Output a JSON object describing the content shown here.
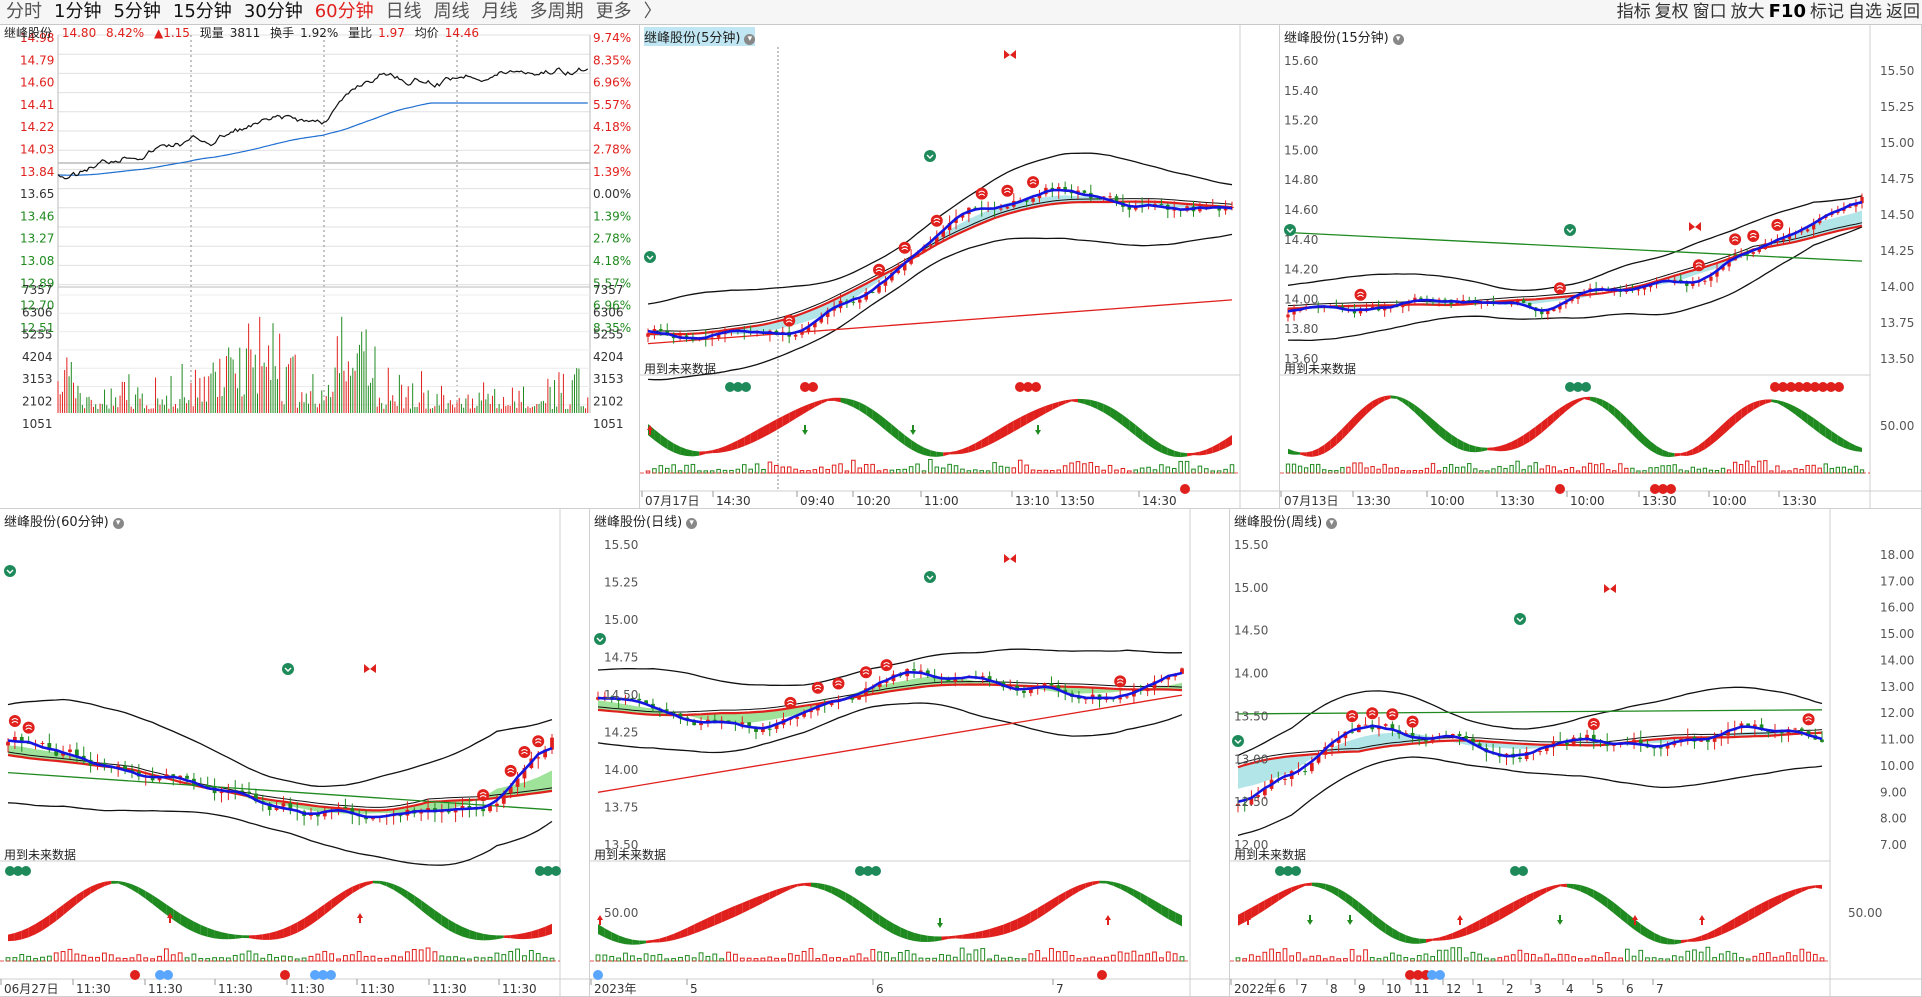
{
  "toolbar": {
    "periods": [
      "分时",
      "1分钟",
      "5分钟",
      "15分钟",
      "30分钟",
      "60分钟",
      "日线",
      "周线",
      "月线",
      "多周期",
      "更多"
    ],
    "more_chevron": "〉",
    "tools": [
      "指标",
      "复权",
      "窗口",
      "放大",
      "F10",
      "标记",
      "自选",
      "返回"
    ]
  },
  "intraday": {
    "name": "继峰股份",
    "price": "14.80",
    "pct": "8.42%",
    "change": "▲1.15",
    "volume_label": "现量",
    "volume": "3811",
    "turnover_label": "换手",
    "turnover": "1.92%",
    "ratio_label": "量比",
    "ratio": "1.97",
    "avg_label": "均价",
    "avg": "14.46",
    "price_ticks_left": [
      "14.98",
      "14.79",
      "14.60",
      "14.41",
      "14.22",
      "14.03",
      "13.84",
      "13.65",
      "13.46",
      "13.27",
      "13.08",
      "12.89",
      "12.70",
      "12.51"
    ],
    "pct_ticks_right": [
      "9.74%",
      "8.35%",
      "6.96%",
      "5.57%",
      "4.18%",
      "2.78%",
      "1.39%",
      "0.00%",
      "1.39%",
      "2.78%",
      "4.18%",
      "5.57%",
      "6.96%",
      "8.35%"
    ],
    "vol_ticks": [
      "7357",
      "6306",
      "5255",
      "4204",
      "3153",
      "2102",
      "1051"
    ]
  },
  "panels": [
    {
      "title": "继峰股份(5分钟)",
      "future": "用到未来数据",
      "price_ticks": [],
      "osc_tick": "",
      "time_ticks": [
        "07月17日",
        "14:30",
        "09:40",
        "10:20",
        "11:00",
        "13:10",
        "13:50",
        "14:30"
      ]
    },
    {
      "title": "继峰股份(15分钟)",
      "future": "用到未来数据",
      "price_ticks": [
        "15.60",
        "15.40",
        "15.20",
        "15.00",
        "14.80",
        "14.60",
        "14.40",
        "14.20",
        "14.00",
        "13.80",
        "13.60"
      ],
      "right_ticks": [
        "15.50",
        "15.25",
        "15.00",
        "14.75",
        "14.50",
        "14.25",
        "14.00",
        "13.75",
        "13.50"
      ],
      "osc_tick": "50.00",
      "time_ticks": [
        "07月13日",
        "13:30",
        "10:00",
        "13:30",
        "10:00",
        "13:30",
        "10:00",
        "13:30"
      ]
    },
    {
      "title": "继峰股份(60分钟)",
      "future": "用到未来数据",
      "time_ticks": [
        "06月27日",
        "11:30",
        "11:30",
        "11:30",
        "11:30",
        "11:30",
        "11:30",
        "11:30"
      ]
    },
    {
      "title": "继峰股份(日线)",
      "future": "用到未来数据",
      "price_ticks": [
        "15.50",
        "15.25",
        "15.00",
        "14.75",
        "14.50",
        "14.25",
        "14.00",
        "13.75",
        "13.50"
      ],
      "osc_tick": "50.00",
      "time_ticks": [
        "2023年",
        "5",
        "6",
        "7"
      ]
    },
    {
      "title": "继峰股份(周线)",
      "future": "用到未来数据",
      "price_ticks": [
        "15.50",
        "15.00",
        "14.50",
        "14.00",
        "13.50",
        "13.00",
        "12.50",
        "12.00"
      ],
      "right_ticks": [
        "18.00",
        "17.00",
        "16.00",
        "15.00",
        "14.00",
        "13.00",
        "12.00",
        "11.00",
        "10.00",
        "9.00",
        "8.00",
        "7.00"
      ],
      "osc_tick": "50.00",
      "time_ticks": [
        "2022年",
        "6",
        "7",
        "8",
        "9",
        "10",
        "11",
        "12",
        "1",
        "2",
        "3",
        "4",
        "5",
        "6",
        "7"
      ]
    }
  ],
  "colors": {
    "up": "#e0201c",
    "down": "#1f8a1f",
    "cloud_blue": "#a9e2e6",
    "cloud_green": "#95e08f",
    "ma_blue": "#1515e0"
  }
}
